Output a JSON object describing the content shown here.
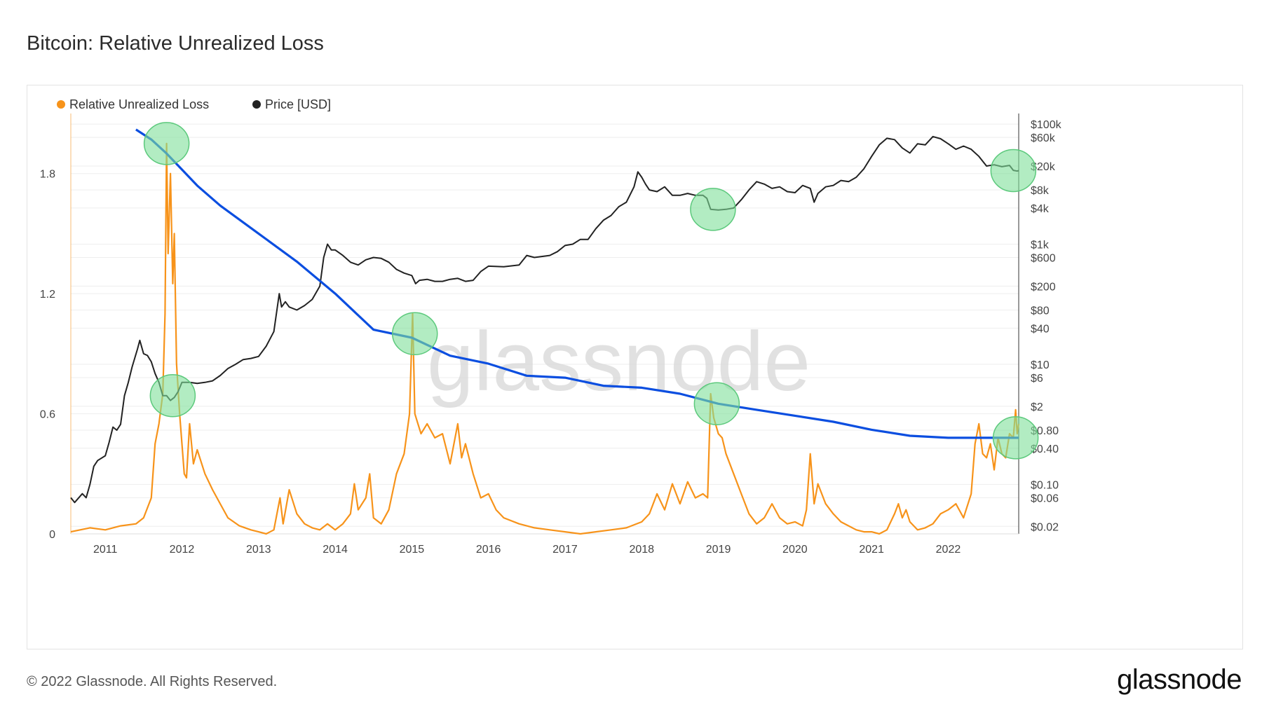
{
  "title": "Bitcoin: Relative Unrealized Loss",
  "footer": {
    "copyright": "© 2022 Glassnode. All Rights Reserved.",
    "logo": "glassnode"
  },
  "watermark": "glassnode",
  "colors": {
    "loss": "#f7931a",
    "price": "#222222",
    "trend": "#0b4ee0",
    "highlight": "#7ee09a",
    "grid": "#eeeeee"
  },
  "chart_data": {
    "type": "line",
    "title": "Bitcoin: Relative Unrealized Loss",
    "legend": [
      {
        "name": "Relative Unrealized Loss",
        "color": "#f7931a"
      },
      {
        "name": "Price [USD]",
        "color": "#222222"
      }
    ],
    "legend_position": "top-left",
    "x_ticks": [
      "2011",
      "2012",
      "2013",
      "2014",
      "2015",
      "2016",
      "2017",
      "2018",
      "2019",
      "2020",
      "2021",
      "2022"
    ],
    "xlim": [
      2010.55,
      2022.92
    ],
    "y_left": {
      "ticks": [
        "0",
        "0.6",
        "1.2",
        "1.8"
      ],
      "tick_values": [
        0,
        0.6,
        1.2,
        1.8
      ],
      "ylim": [
        0,
        2.1
      ]
    },
    "y_right": {
      "scale": "log",
      "ticks": [
        "$0.02",
        "$0.06",
        "$0.10",
        "$0.40",
        "$0.80",
        "$2",
        "$6",
        "$10",
        "$40",
        "$80",
        "$200",
        "$600",
        "$1k",
        "$4k",
        "$8k",
        "$20k",
        "$60k",
        "$100k"
      ],
      "tick_values": [
        0.02,
        0.06,
        0.1,
        0.4,
        0.8,
        2,
        6,
        10,
        40,
        80,
        200,
        600,
        1000,
        4000,
        8000,
        20000,
        60000,
        100000
      ],
      "ylim": [
        0.015,
        150000
      ]
    },
    "grid": true,
    "series": [
      {
        "name": "Relative Unrealized Loss",
        "axis": "left",
        "x": [
          2010.55,
          2010.8,
          2011.0,
          2011.2,
          2011.4,
          2011.5,
          2011.6,
          2011.65,
          2011.7,
          2011.75,
          2011.78,
          2011.8,
          2011.82,
          2011.85,
          2011.88,
          2011.9,
          2011.93,
          2011.97,
          2012.0,
          2012.03,
          2012.06,
          2012.1,
          2012.15,
          2012.2,
          2012.3,
          2012.4,
          2012.5,
          2012.6,
          2012.75,
          2012.9,
          2013.0,
          2013.1,
          2013.2,
          2013.28,
          2013.32,
          2013.4,
          2013.5,
          2013.6,
          2013.7,
          2013.8,
          2013.9,
          2014.0,
          2014.1,
          2014.2,
          2014.25,
          2014.3,
          2014.4,
          2014.45,
          2014.5,
          2014.6,
          2014.7,
          2014.8,
          2014.9,
          2014.97,
          2015.01,
          2015.04,
          2015.08,
          2015.12,
          2015.2,
          2015.3,
          2015.4,
          2015.5,
          2015.6,
          2015.65,
          2015.7,
          2015.8,
          2015.9,
          2016.0,
          2016.1,
          2016.2,
          2016.4,
          2016.6,
          2016.8,
          2017.0,
          2017.2,
          2017.4,
          2017.6,
          2017.8,
          2018.0,
          2018.1,
          2018.2,
          2018.3,
          2018.4,
          2018.5,
          2018.6,
          2018.7,
          2018.8,
          2018.86,
          2018.9,
          2018.94,
          2019.0,
          2019.05,
          2019.1,
          2019.2,
          2019.3,
          2019.4,
          2019.5,
          2019.6,
          2019.7,
          2019.8,
          2019.9,
          2020.0,
          2020.1,
          2020.15,
          2020.2,
          2020.25,
          2020.3,
          2020.4,
          2020.5,
          2020.6,
          2020.7,
          2020.8,
          2020.9,
          2021.0,
          2021.1,
          2021.2,
          2021.3,
          2021.35,
          2021.4,
          2021.45,
          2021.5,
          2021.55,
          2021.6,
          2021.7,
          2021.8,
          2021.9,
          2022.0,
          2022.1,
          2022.2,
          2022.3,
          2022.35,
          2022.4,
          2022.45,
          2022.5,
          2022.55,
          2022.6,
          2022.65,
          2022.7,
          2022.75,
          2022.8,
          2022.85,
          2022.88,
          2022.9,
          2022.92
        ],
        "values": [
          0.01,
          0.03,
          0.02,
          0.04,
          0.05,
          0.08,
          0.18,
          0.45,
          0.55,
          0.7,
          1.1,
          1.95,
          1.4,
          1.8,
          1.25,
          1.5,
          0.85,
          0.6,
          0.45,
          0.3,
          0.28,
          0.55,
          0.35,
          0.42,
          0.3,
          0.22,
          0.15,
          0.08,
          0.04,
          0.02,
          0.01,
          0.0,
          0.02,
          0.18,
          0.05,
          0.22,
          0.1,
          0.05,
          0.03,
          0.02,
          0.05,
          0.02,
          0.05,
          0.1,
          0.25,
          0.12,
          0.18,
          0.3,
          0.08,
          0.05,
          0.12,
          0.3,
          0.4,
          0.6,
          1.1,
          0.6,
          0.55,
          0.5,
          0.55,
          0.48,
          0.5,
          0.35,
          0.55,
          0.38,
          0.45,
          0.3,
          0.18,
          0.2,
          0.12,
          0.08,
          0.05,
          0.03,
          0.02,
          0.01,
          0.0,
          0.01,
          0.02,
          0.03,
          0.06,
          0.1,
          0.2,
          0.12,
          0.25,
          0.15,
          0.26,
          0.18,
          0.2,
          0.18,
          0.7,
          0.58,
          0.5,
          0.48,
          0.4,
          0.3,
          0.2,
          0.1,
          0.05,
          0.08,
          0.15,
          0.08,
          0.05,
          0.06,
          0.04,
          0.12,
          0.4,
          0.15,
          0.25,
          0.15,
          0.1,
          0.06,
          0.04,
          0.02,
          0.01,
          0.01,
          0.0,
          0.02,
          0.1,
          0.15,
          0.08,
          0.12,
          0.06,
          0.04,
          0.02,
          0.03,
          0.05,
          0.1,
          0.12,
          0.15,
          0.08,
          0.2,
          0.45,
          0.55,
          0.4,
          0.38,
          0.45,
          0.32,
          0.48,
          0.4,
          0.38,
          0.5,
          0.48,
          0.62,
          0.5,
          0.55
        ]
      },
      {
        "name": "Price [USD]",
        "axis": "right",
        "x": [
          2010.55,
          2010.6,
          2010.7,
          2010.75,
          2010.8,
          2010.85,
          2010.9,
          2011.0,
          2011.05,
          2011.1,
          2011.15,
          2011.2,
          2011.25,
          2011.3,
          2011.35,
          2011.42,
          2011.45,
          2011.5,
          2011.55,
          2011.6,
          2011.65,
          2011.7,
          2011.75,
          2011.8,
          2011.85,
          2011.9,
          2011.95,
          2012.0,
          2012.1,
          2012.2,
          2012.3,
          2012.4,
          2012.5,
          2012.6,
          2012.7,
          2012.8,
          2012.9,
          2013.0,
          2013.1,
          2013.2,
          2013.27,
          2013.3,
          2013.35,
          2013.4,
          2013.5,
          2013.6,
          2013.7,
          2013.8,
          2013.85,
          2013.9,
          2013.95,
          2014.0,
          2014.1,
          2014.2,
          2014.3,
          2014.4,
          2014.5,
          2014.6,
          2014.7,
          2014.8,
          2014.9,
          2015.0,
          2015.05,
          2015.1,
          2015.2,
          2015.3,
          2015.4,
          2015.5,
          2015.6,
          2015.7,
          2015.8,
          2015.9,
          2016.0,
          2016.2,
          2016.4,
          2016.5,
          2016.6,
          2016.8,
          2016.9,
          2017.0,
          2017.1,
          2017.2,
          2017.3,
          2017.4,
          2017.5,
          2017.6,
          2017.7,
          2017.8,
          2017.9,
          2017.95,
          2018.0,
          2018.05,
          2018.1,
          2018.2,
          2018.3,
          2018.4,
          2018.5,
          2018.6,
          2018.7,
          2018.8,
          2018.85,
          2018.9,
          2019.0,
          2019.1,
          2019.2,
          2019.3,
          2019.4,
          2019.5,
          2019.6,
          2019.7,
          2019.8,
          2019.9,
          2020.0,
          2020.1,
          2020.2,
          2020.25,
          2020.3,
          2020.4,
          2020.5,
          2020.6,
          2020.7,
          2020.8,
          2020.9,
          2021.0,
          2021.1,
          2021.2,
          2021.3,
          2021.4,
          2021.5,
          2021.6,
          2021.7,
          2021.8,
          2021.9,
          2022.0,
          2022.1,
          2022.2,
          2022.3,
          2022.4,
          2022.5,
          2022.6,
          2022.7,
          2022.8,
          2022.85,
          2022.9,
          2022.92
        ],
        "values": [
          0.06,
          0.05,
          0.07,
          0.06,
          0.1,
          0.2,
          0.25,
          0.3,
          0.5,
          0.9,
          0.8,
          1.0,
          3.0,
          5.0,
          9.0,
          18.0,
          25.0,
          15.0,
          14.0,
          11.0,
          7.0,
          5.0,
          3.0,
          3.0,
          2.5,
          2.8,
          3.5,
          5.0,
          5.0,
          4.8,
          5.0,
          5.3,
          6.5,
          8.5,
          10.0,
          12.0,
          12.5,
          13.5,
          20.0,
          35.0,
          150.0,
          90.0,
          110.0,
          90.0,
          80.0,
          95.0,
          120.0,
          200.0,
          600.0,
          1000.0,
          800.0,
          800.0,
          650.0,
          500.0,
          450.0,
          550.0,
          600.0,
          580.0,
          500.0,
          380.0,
          330.0,
          300.0,
          220.0,
          250.0,
          260.0,
          240.0,
          240.0,
          260.0,
          270.0,
          240.0,
          250.0,
          350.0,
          430.0,
          420.0,
          450.0,
          650.0,
          600.0,
          650.0,
          750.0,
          950.0,
          1000.0,
          1200.0,
          1200.0,
          1800.0,
          2500.0,
          3000.0,
          4200.0,
          5000.0,
          9000.0,
          16000.0,
          13000.0,
          10000.0,
          8000.0,
          7500.0,
          9000.0,
          6500.0,
          6500.0,
          7000.0,
          6500.0,
          6500.0,
          5800.0,
          3800.0,
          3700.0,
          3800.0,
          4000.0,
          5500.0,
          8000.0,
          11000.0,
          10000.0,
          8500.0,
          9000.0,
          7500.0,
          7200.0,
          9500.0,
          8500.0,
          5000.0,
          7000.0,
          9000.0,
          9500.0,
          11500.0,
          11000.0,
          13000.0,
          18000.0,
          29000.0,
          45000.0,
          58000.0,
          55000.0,
          40000.0,
          33000.0,
          47000.0,
          45000.0,
          62000.0,
          57000.0,
          47000.0,
          38000.0,
          43000.0,
          38000.0,
          29000.0,
          20000.0,
          21000.0,
          19500.0,
          20500.0,
          17000.0,
          16500.0,
          16800.0
        ]
      },
      {
        "axis": "left",
        "style": "trend",
        "x": [
          2011.4,
          2011.6,
          2011.8,
          2012.0,
          2012.2,
          2012.5,
          2013.0,
          2013.5,
          2014.0,
          2014.5,
          2015.0,
          2015.5,
          2016.0,
          2016.5,
          2017.0,
          2017.5,
          2018.0,
          2018.5,
          2019.0,
          2019.5,
          2020.0,
          2020.5,
          2021.0,
          2021.5,
          2022.0,
          2022.5,
          2022.92
        ],
        "values": [
          2.02,
          1.97,
          1.9,
          1.82,
          1.74,
          1.64,
          1.5,
          1.36,
          1.2,
          1.02,
          0.98,
          0.89,
          0.85,
          0.79,
          0.78,
          0.74,
          0.73,
          0.7,
          0.65,
          0.62,
          0.59,
          0.56,
          0.52,
          0.49,
          0.48,
          0.48,
          0.48
        ]
      }
    ],
    "highlights": [
      {
        "x": 2011.8,
        "axis": "left",
        "y": 1.95
      },
      {
        "x": 2011.88,
        "axis": "right",
        "y": 3.0
      },
      {
        "x": 2015.04,
        "axis": "left",
        "y": 1.0
      },
      {
        "x": 2018.93,
        "axis": "right",
        "y": 3800
      },
      {
        "x": 2018.98,
        "axis": "left",
        "y": 0.65
      },
      {
        "x": 2022.85,
        "axis": "right",
        "y": 16800
      },
      {
        "x": 2022.88,
        "axis": "left",
        "y": 0.48
      }
    ]
  }
}
